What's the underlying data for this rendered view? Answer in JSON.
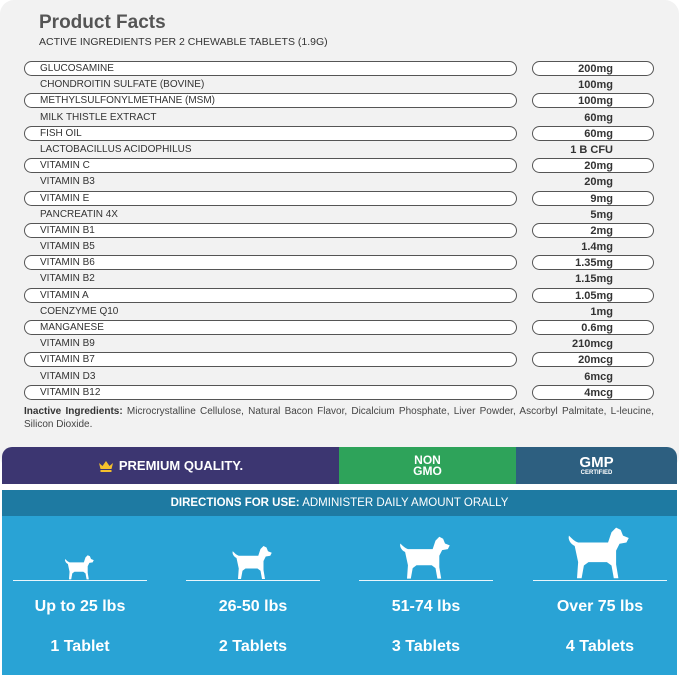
{
  "title": "Product Facts",
  "subtitle": "ACTIVE INGREDIENTS PER 2 CHEWABLE TABLETS (1.9G)",
  "ingredients": [
    {
      "name": "GLUCOSAMINE",
      "amount": "200mg"
    },
    {
      "name": "CHONDROITIN SULFATE (BOVINE)",
      "amount": "100mg"
    },
    {
      "name": "METHYLSULFONYLMETHANE (MSM)",
      "amount": "100mg"
    },
    {
      "name": "MILK THISTLE EXTRACT",
      "amount": "60mg"
    },
    {
      "name": "FISH OIL",
      "amount": "60mg"
    },
    {
      "name": "LACTOBACILLUS ACIDOPHILUS",
      "amount": "1 B CFU"
    },
    {
      "name": "VITAMIN C",
      "amount": "20mg"
    },
    {
      "name": "VITAMIN B3",
      "amount": "20mg"
    },
    {
      "name": "VITAMIN E",
      "amount": "9mg"
    },
    {
      "name": "PANCREATIN 4X",
      "amount": "5mg"
    },
    {
      "name": "VITAMIN B1",
      "amount": "2mg"
    },
    {
      "name": "VITAMIN B5",
      "amount": "1.4mg"
    },
    {
      "name": "VITAMIN B6",
      "amount": "1.35mg"
    },
    {
      "name": "VITAMIN B2",
      "amount": "1.15mg"
    },
    {
      "name": "VITAMIN A",
      "amount": "1.05mg"
    },
    {
      "name": "COENZYME Q10",
      "amount": "1mg"
    },
    {
      "name": "MANGANESE",
      "amount": "0.6mg"
    },
    {
      "name": "VITAMIN B9",
      "amount": "210mcg"
    },
    {
      "name": "VITAMIN B7",
      "amount": "20mcg"
    },
    {
      "name": "VITAMIN D3",
      "amount": "6mcg"
    },
    {
      "name": "VITAMIN B12",
      "amount": "4mcg"
    }
  ],
  "inactive": {
    "label": "Inactive Ingredients:",
    "text": " Microcrystalline Cellulose, Natural Bacon Flavor, Dicalcium Phosphate, Liver Powder, Ascorbyl Palmitate, L-leucine, Silicon Dioxide."
  },
  "badges": {
    "premium": "PREMIUM QUALITY.",
    "non": "NON",
    "gmo": "GMO",
    "gmp": "GMP",
    "certified": "CERTIFIED",
    "icon": "crown-icon"
  },
  "directions": {
    "label": "DIRECTIONS FOR USE:",
    "text": " ADMINISTER DAILY AMOUNT ORALLY"
  },
  "dosage": [
    {
      "weight": "Up to 25 lbs",
      "tablets": "1 Tablet"
    },
    {
      "weight": "26-50 lbs",
      "tablets": "2 Tablets"
    },
    {
      "weight": "51-74 lbs",
      "tablets": "3 Tablets"
    },
    {
      "weight": "Over 75 lbs",
      "tablets": "4 Tablets"
    }
  ],
  "colors": {
    "purple": "#3c3671",
    "green": "#2ea35a",
    "teal": "#2d5f80",
    "directions": "#1e7aa2",
    "blue": "#29a3d5"
  }
}
